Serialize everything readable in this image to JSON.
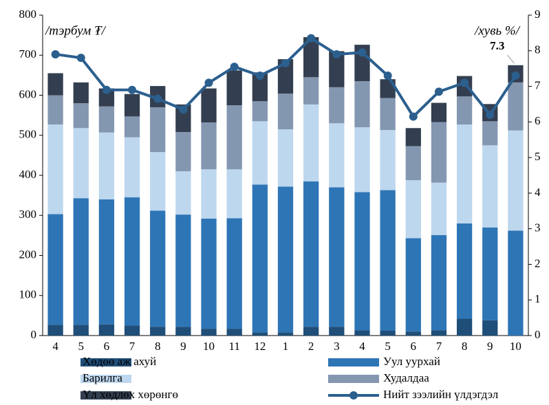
{
  "chart_data": {
    "type": "bar-line",
    "y_label": "/тэрбум ₮/",
    "y2_label": "/хувь %/",
    "categories": [
      "4",
      "5",
      "6",
      "7",
      "8",
      "9",
      "10",
      "11",
      "12",
      "1",
      "2",
      "3",
      "4",
      "5",
      "6",
      "7",
      "8",
      "9",
      "10"
    ],
    "ylim": [
      0,
      800
    ],
    "yticks": [
      0,
      100,
      200,
      300,
      400,
      500,
      600,
      700,
      800
    ],
    "y2lim": [
      0,
      9
    ],
    "y2ticks": [
      0,
      1,
      2,
      3,
      4,
      5,
      6,
      7,
      8,
      9
    ],
    "series": [
      {
        "name": "Хөдөө аж ахуй",
        "color": "#1f4e79",
        "values": [
          27,
          27,
          28,
          25,
          22,
          22,
          17,
          17,
          8,
          8,
          22,
          22,
          13,
          12,
          10,
          13,
          42,
          38,
          0
        ]
      },
      {
        "name": "Уул уурхай",
        "color": "#2e75b6",
        "values": [
          276,
          316,
          312,
          320,
          290,
          280,
          275,
          276,
          369,
          364,
          363,
          348,
          345,
          351,
          233,
          238,
          238,
          232,
          262
        ]
      },
      {
        "name": "Барилга",
        "color": "#bdd7ee",
        "values": [
          224,
          175,
          167,
          150,
          146,
          108,
          123,
          122,
          158,
          143,
          192,
          160,
          162,
          150,
          145,
          131,
          247,
          205,
          250
        ]
      },
      {
        "name": "Худалдаа",
        "color": "#8497b0",
        "values": [
          73,
          62,
          65,
          52,
          112,
          98,
          117,
          160,
          50,
          89,
          68,
          90,
          115,
          80,
          85,
          151,
          70,
          60,
          120
        ]
      },
      {
        "name": "Үл хөдлөх хөрөнгө",
        "color": "#333f50",
        "values": [
          55,
          52,
          45,
          56,
          53,
          69,
          85,
          87,
          72,
          86,
          100,
          90,
          91,
          47,
          45,
          48,
          51,
          43,
          43
        ]
      },
      {
        "name": "Нийт зээлийн үлдэгдэл",
        "color": "#2b5f8e",
        "axis": "y2",
        "type": "line",
        "values": [
          7.9,
          7.8,
          6.9,
          6.9,
          6.65,
          6.35,
          7.1,
          7.55,
          7.3,
          7.65,
          8.35,
          7.9,
          7.95,
          7.3,
          6.15,
          6.85,
          7.1,
          6.2,
          7.3
        ],
        "value_labels": [
          null,
          null,
          null,
          null,
          null,
          null,
          null,
          null,
          null,
          null,
          null,
          null,
          null,
          null,
          null,
          null,
          null,
          null,
          "7.3"
        ]
      }
    ]
  }
}
